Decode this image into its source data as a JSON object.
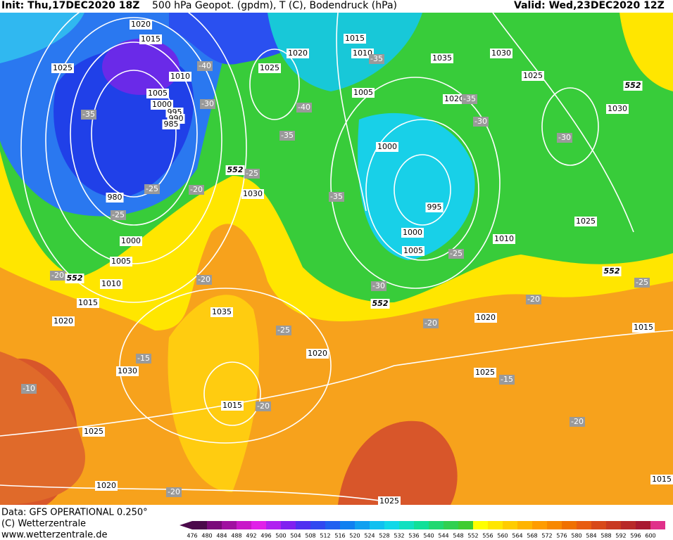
{
  "header": {
    "init": "Init: Thu,17DEC2020 18Z",
    "title": "500 hPa Geopot. (gpdm), T (C), Bodendruck (hPa)",
    "valid": "Valid: Wed,23DEC2020 12Z"
  },
  "footer": {
    "data": "Data: GFS OPERATIONAL 0.250°",
    "copyright": "(C) Wetterzentrale",
    "url": "www.wetterzentrale.de"
  },
  "pressure_labels": [
    1020,
    1015,
    1025,
    1010,
    1005,
    1000,
    995,
    990,
    985,
    980,
    1000,
    1005,
    1010,
    1015,
    1020,
    1030,
    1035,
    1030,
    1020,
    1015,
    1025,
    1020,
    1025,
    1020,
    1025,
    1015,
    1010,
    1005,
    1035,
    1030,
    1025,
    1020,
    1030,
    1000,
    995,
    1000,
    1005,
    1010,
    1025,
    1020,
    1025,
    1015,
    1015
  ],
  "temperature_labels": [
    -35,
    -40,
    -30,
    -40,
    -35,
    -25,
    -20,
    -25,
    -25,
    -35,
    -35,
    -30,
    -30,
    -35,
    -25,
    -30,
    -20,
    -20,
    -25,
    -20,
    -20,
    -25,
    -15,
    -10,
    -20,
    -15,
    -20,
    -20
  ],
  "height_labels": [
    552,
    552,
    552,
    552,
    552
  ],
  "legend": {
    "levels": [
      476,
      480,
      484,
      488,
      492,
      496,
      500,
      504,
      508,
      512,
      516,
      520,
      524,
      528,
      532,
      536,
      540,
      544,
      548,
      552,
      556,
      560,
      564,
      568,
      572,
      576,
      580,
      584,
      588,
      592,
      596,
      600
    ],
    "colors": [
      "#4b0a4b",
      "#7a0a7a",
      "#a010a0",
      "#c818c8",
      "#e020e8",
      "#b020f0",
      "#8020f0",
      "#5030f0",
      "#3048f0",
      "#2060f0",
      "#1080f0",
      "#10a0f0",
      "#10c0f0",
      "#10d8e8",
      "#10e0c0",
      "#10e098",
      "#20d870",
      "#30d050",
      "#40cc30",
      "#ffff00",
      "#ffe600",
      "#ffcc00",
      "#ffb400",
      "#ff9c00",
      "#f88800",
      "#f07000",
      "#e85c10",
      "#d84818",
      "#c83820",
      "#b82828",
      "#a81830",
      "#e0308a"
    ]
  }
}
